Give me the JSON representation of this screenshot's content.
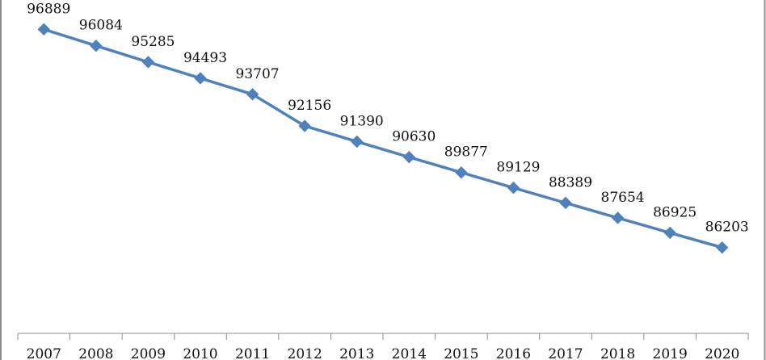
{
  "chart_data": {
    "type": "line",
    "title": "",
    "xlabel": "",
    "ylabel": "",
    "categories": [
      "2007",
      "2008",
      "2009",
      "2010",
      "2011",
      "2012",
      "2013",
      "2014",
      "2015",
      "2016",
      "2017",
      "2018",
      "2019",
      "2020"
    ],
    "series": [
      {
        "name": "",
        "values": [
          96889,
          96084,
          95285,
          94493,
          93707,
          92156,
          91390,
          90630,
          89877,
          89129,
          88389,
          87654,
          86925,
          86203
        ],
        "labels": [
          "96889",
          "96084",
          "95285",
          "94493",
          "93707",
          "92156",
          "91390",
          "90630",
          "89877",
          "89129",
          "88389",
          "87654",
          "86925",
          "86203"
        ],
        "marker": "diamond"
      }
    ],
    "ylim": [
      82000,
      97100
    ],
    "grid": false,
    "legend": "none",
    "colors": {
      "line": "#4F81BD",
      "marker": "#4F81BD",
      "axis": "#8C8C8C",
      "frame": "#8C8C8C",
      "text": "#111111"
    }
  }
}
